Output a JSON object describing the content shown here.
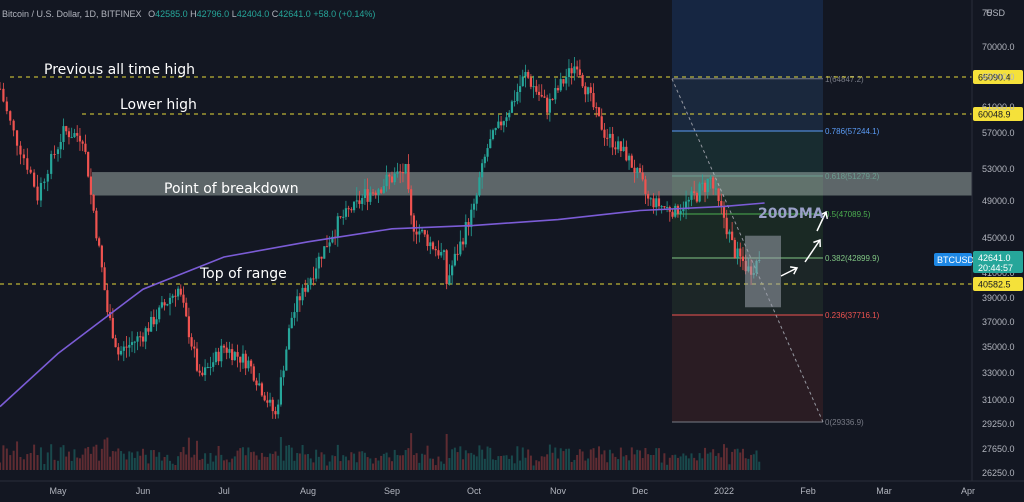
{
  "header": {
    "symbol": "Bitcoin / U.S. Dollar, 1D, BITFINEX",
    "open_label": "O",
    "open": "42585.0",
    "high_label": "H",
    "high": "42796.0",
    "low_label": "L",
    "low": "42404.0",
    "close_label": "C",
    "close": "42641.0",
    "change": "+58.0 (+0.14%)"
  },
  "colors": {
    "up": "#26a69a",
    "down": "#ef5350",
    "ma": "#7b5cd6",
    "bg": "#131722"
  },
  "annotations": {
    "prev_ath": "Previous all time high",
    "lower_high": "Lower high",
    "breakdown": "Point of breakdown",
    "top_range": "Top of range",
    "dma": "200DMA"
  },
  "chart_data": {
    "type": "candlestick",
    "title": "Bitcoin / U.S. Dollar, 1D, BITFINEX",
    "ylabel": "USD",
    "y_ticks": [
      "70000.0",
      "65000.0",
      "61000.0",
      "57000.0",
      "53000.0",
      "49000.0",
      "45000.0",
      "41000.0",
      "39000.0",
      "37000.0",
      "35000.0",
      "33000.0",
      "31000.0",
      "29250.0",
      "27650.0",
      "26250.0"
    ],
    "x_ticks": [
      "May",
      "Jun",
      "Jul",
      "Aug",
      "Sep",
      "Oct",
      "Nov",
      "Dec",
      "2022",
      "Feb",
      "Mar",
      "Apr"
    ],
    "horizontal_levels": [
      {
        "label": "65090.4",
        "value": 65090.4
      },
      {
        "label": "60048.9",
        "value": 60048.9
      },
      {
        "label": "40582.5",
        "value": 40582.5
      }
    ],
    "price_tag": {
      "symbol": "BTCUSD",
      "price": "42641.0",
      "countdown": "20:44:57"
    },
    "fib_levels": [
      {
        "label": "1(64847.2)",
        "value": 64847.2
      },
      {
        "label": "0.786(57244.1)",
        "value": 57244.1
      },
      {
        "label": "0.618(51279.2)",
        "value": 51279.2
      },
      {
        "label": "0.5(47089.5)",
        "value": 47089.5
      },
      {
        "label": "0.382(42899.9)",
        "value": 42899.9
      },
      {
        "label": "0.236(37716.1)",
        "value": 37716.1
      },
      {
        "label": "0(29336.9)",
        "value": 29336.9
      }
    ],
    "breakdown_zone": [
      49500,
      51800
    ],
    "series": [
      {
        "name": "BTCUSD",
        "anchors": [
          [
            "2021-04-14",
            63500
          ],
          [
            "2021-04-18",
            57000
          ],
          [
            "2021-04-25",
            49500
          ],
          [
            "2021-05-03",
            57200
          ],
          [
            "2021-05-10",
            56500
          ],
          [
            "2021-05-13",
            49500
          ],
          [
            "2021-05-19",
            38000
          ],
          [
            "2021-05-23",
            34500
          ],
          [
            "2021-06-01",
            36000
          ],
          [
            "2021-06-14",
            40000
          ],
          [
            "2021-06-22",
            32500
          ],
          [
            "2021-07-01",
            35000
          ],
          [
            "2021-07-10",
            33800
          ],
          [
            "2021-07-20",
            29800
          ],
          [
            "2021-07-26",
            37500
          ],
          [
            "2021-08-10",
            45500
          ],
          [
            "2021-08-22",
            49500
          ],
          [
            "2021-09-06",
            52000
          ],
          [
            "2021-09-08",
            46500
          ],
          [
            "2021-09-20",
            43000
          ],
          [
            "2021-09-21",
            40700
          ],
          [
            "2021-10-01",
            48000
          ],
          [
            "2021-10-06",
            55000
          ],
          [
            "2021-10-15",
            61500
          ],
          [
            "2021-10-20",
            65500
          ],
          [
            "2021-10-28",
            61000
          ],
          [
            "2021-11-08",
            67500
          ],
          [
            "2021-11-10",
            64800
          ],
          [
            "2021-11-18",
            57000
          ],
          [
            "2021-11-26",
            54000
          ],
          [
            "2021-12-04",
            49000
          ],
          [
            "2021-12-14",
            47500
          ],
          [
            "2021-12-27",
            51000
          ],
          [
            "2022-01-05",
            43500
          ],
          [
            "2022-01-10",
            41800
          ],
          [
            "2022-01-14",
            42641
          ]
        ]
      },
      {
        "name": "200DMA",
        "anchors": [
          [
            "2021-04-14",
            30500
          ],
          [
            "2021-05-01",
            34500
          ],
          [
            "2021-06-01",
            40000
          ],
          [
            "2021-07-01",
            43000
          ],
          [
            "2021-08-01",
            44600
          ],
          [
            "2021-09-01",
            45800
          ],
          [
            "2021-10-01",
            46100
          ],
          [
            "2021-11-01",
            46600
          ],
          [
            "2021-12-01",
            47600
          ],
          [
            "2022-01-01",
            48200
          ],
          [
            "2022-01-16",
            48700
          ]
        ]
      }
    ]
  }
}
